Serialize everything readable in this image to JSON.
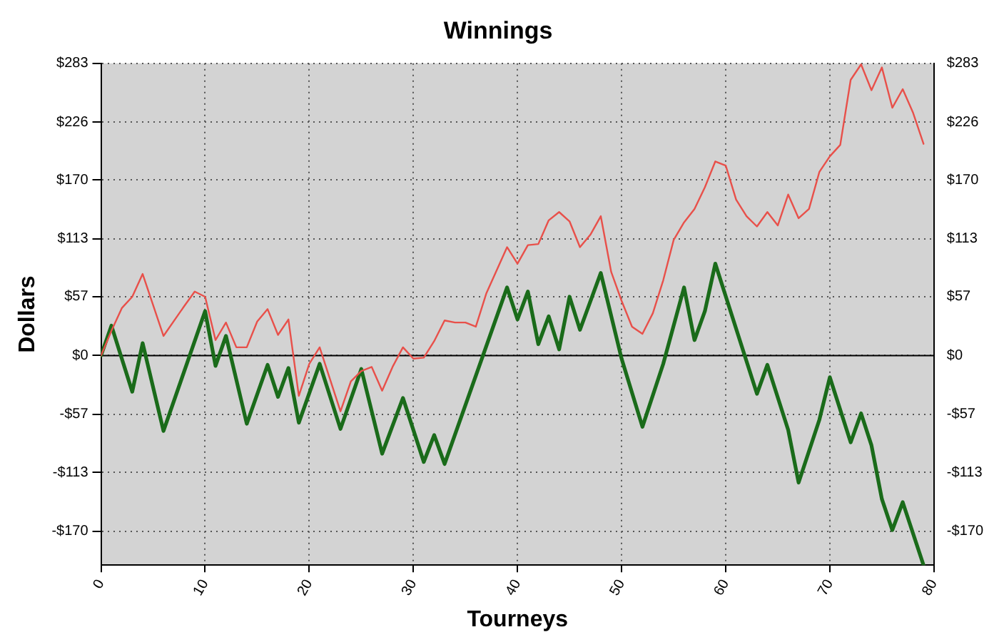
{
  "chart_data": {
    "type": "line",
    "title": "Winnings",
    "xlabel": "Tourneys",
    "ylabel": "Dollars",
    "xlim": [
      0,
      80
    ],
    "xticks": [
      0,
      10,
      20,
      30,
      40,
      50,
      60,
      70,
      80
    ],
    "ylim": [
      -203,
      283
    ],
    "yticks": [
      {
        "value": -170,
        "label": "-$170"
      },
      {
        "value": -113,
        "label": "-$113"
      },
      {
        "value": -57,
        "label": "-$57"
      },
      {
        "value": 0,
        "label": "$0"
      },
      {
        "value": 57,
        "label": "$57"
      },
      {
        "value": 113,
        "label": "$113"
      },
      {
        "value": 170,
        "label": "$170"
      },
      {
        "value": 226,
        "label": "$226"
      },
      {
        "value": 283,
        "label": "$283"
      }
    ],
    "y2lim": [
      -203,
      283
    ],
    "y2ticks": [
      {
        "value": -170,
        "label": "-$170"
      },
      {
        "value": -113,
        "label": "-$113"
      },
      {
        "value": -57,
        "label": "-$57"
      },
      {
        "value": 0,
        "label": "$0"
      },
      {
        "value": 57,
        "label": "$57"
      },
      {
        "value": 113,
        "label": "$113"
      },
      {
        "value": 170,
        "label": "$170"
      },
      {
        "value": 226,
        "label": "$226"
      },
      {
        "value": 283,
        "label": "$283"
      }
    ],
    "grid": true,
    "legend": false,
    "marker": "none",
    "line_style": "solid",
    "ref_lines": [
      {
        "axis": "y",
        "value": 0,
        "color": "#000000"
      }
    ],
    "series": [
      {
        "color": "#e8504a",
        "x": [
          0,
          1,
          2,
          3,
          4,
          6,
          8,
          9,
          10,
          11,
          12,
          13,
          14,
          15,
          16,
          17,
          18,
          19,
          20,
          21,
          23,
          24,
          25,
          26,
          27,
          28,
          29,
          30,
          31,
          32,
          33,
          34,
          35,
          36,
          37,
          39,
          40,
          41,
          42,
          43,
          44,
          45,
          46,
          47,
          48,
          49,
          50,
          51,
          52,
          53,
          54,
          55,
          56,
          57,
          58,
          59,
          60,
          61,
          62,
          63,
          64,
          65,
          66,
          67,
          68,
          69,
          70,
          71,
          72,
          73,
          74,
          75,
          76,
          77,
          78,
          79
        ],
        "values": [
          0,
          24,
          46,
          57,
          79,
          19,
          48,
          62,
          57,
          15,
          32,
          8,
          8,
          33,
          45,
          20,
          35,
          -39,
          -8,
          8,
          -54,
          -25,
          -15,
          -11,
          -34,
          -11,
          8,
          -3,
          -2,
          14,
          34,
          32,
          32,
          28,
          60,
          105,
          89,
          107,
          108,
          131,
          139,
          130,
          105,
          117,
          135,
          81,
          53,
          28,
          21,
          41,
          73,
          112,
          129,
          142,
          163,
          188,
          184,
          151,
          135,
          125,
          139,
          126,
          156,
          133,
          142,
          178,
          193,
          204,
          267,
          282,
          257,
          279,
          240,
          258,
          235,
          205
        ]
      },
      {
        "color": "#1a6b1a",
        "x": [
          0,
          1,
          3,
          4,
          6,
          10,
          11,
          12,
          14,
          16,
          17,
          18,
          19,
          21,
          23,
          25,
          27,
          29,
          31,
          32,
          33,
          39,
          40,
          41,
          42,
          43,
          44,
          45,
          46,
          48,
          50,
          52,
          54,
          56,
          57,
          58,
          59,
          63,
          64,
          66,
          67,
          69,
          70,
          72,
          73,
          74,
          75,
          76,
          77,
          79
        ],
        "values": [
          0,
          29,
          -35,
          12,
          -73,
          43,
          -10,
          19,
          -66,
          -9,
          -40,
          -12,
          -65,
          -8,
          -71,
          -13,
          -95,
          -41,
          -103,
          -77,
          -105,
          66,
          35,
          62,
          11,
          38,
          6,
          57,
          25,
          80,
          -3,
          -69,
          -8,
          66,
          15,
          43,
          89,
          -37,
          -9,
          -72,
          -123,
          -62,
          -21,
          -84,
          -56,
          -87,
          -139,
          -169,
          -142,
          -203
        ]
      }
    ]
  }
}
